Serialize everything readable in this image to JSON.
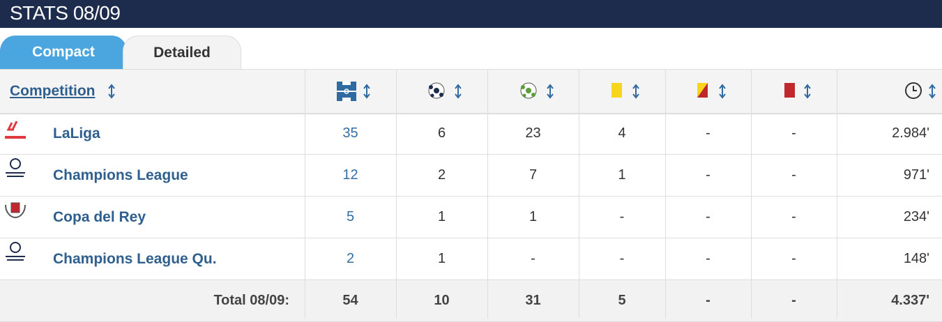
{
  "header": {
    "title": "STATS 08/09"
  },
  "tabs": [
    "Compact",
    "Detailed"
  ],
  "table": {
    "columns": {
      "competition": "Competition"
    },
    "rows": [
      [
        "LaLiga",
        "35",
        "6",
        "23",
        "4",
        "-",
        "-",
        "2.984'"
      ],
      [
        "Champions League",
        "12",
        "2",
        "7",
        "1",
        "-",
        "-",
        "971'"
      ],
      [
        "Copa del Rey",
        "5",
        "1",
        "1",
        "-",
        "-",
        "-",
        "234'"
      ],
      [
        "Champions League Qu.",
        "2",
        "1",
        "-",
        "-",
        "-",
        "-",
        "148'"
      ]
    ],
    "total": [
      "Total 08/09:",
      "54",
      "10",
      "31",
      "5",
      "-",
      "-",
      "4.337'"
    ]
  }
}
